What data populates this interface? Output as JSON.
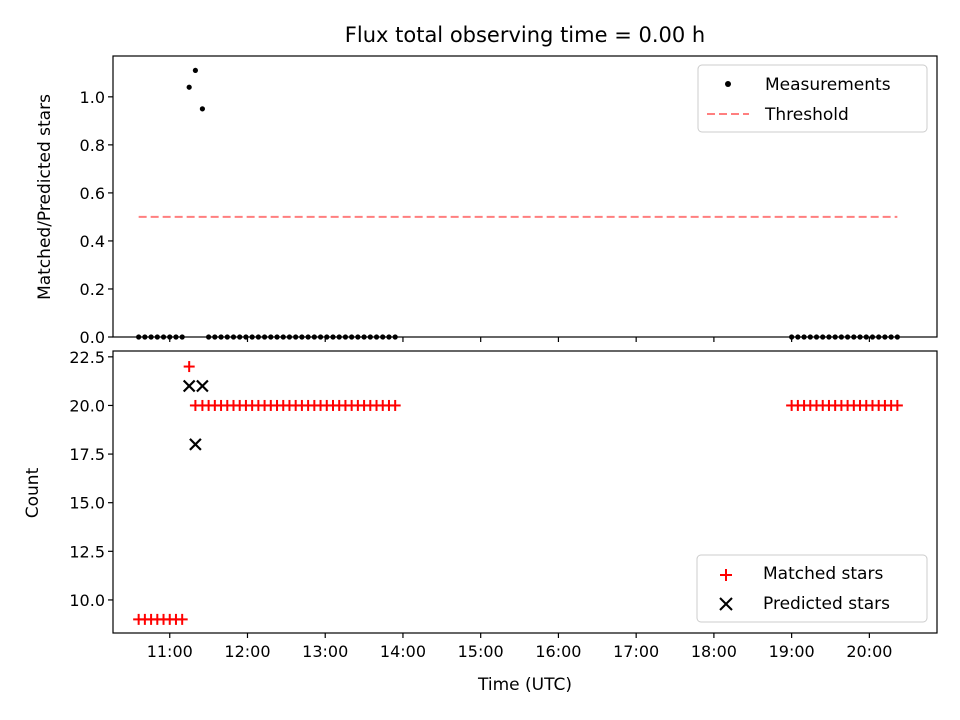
{
  "chart_data": [
    {
      "type": "scatter",
      "title": "Flux total observing time = 0.00 h",
      "xlabel": "",
      "ylabel": "Matched/Predicted stars",
      "xlim": [
        10.27,
        20.87
      ],
      "ylim": [
        0.0,
        1.17
      ],
      "yticks": [
        0.0,
        0.2,
        0.4,
        0.6,
        0.8,
        1.0
      ],
      "ytick_labels": [
        "0.0",
        "0.2",
        "0.4",
        "0.6",
        "0.8",
        "1.0"
      ],
      "legend_position": "upper right",
      "series": [
        {
          "name": "Measurements",
          "style": "dot",
          "color": "#000000",
          "x": [
            10.6,
            10.68,
            10.76,
            10.84,
            10.92,
            11.0,
            11.08,
            11.16,
            11.25,
            11.33,
            11.42,
            11.5,
            11.58,
            11.66,
            11.74,
            11.82,
            11.9,
            11.98,
            12.06,
            12.14,
            12.22,
            12.3,
            12.38,
            12.46,
            12.54,
            12.62,
            12.7,
            12.78,
            12.86,
            12.94,
            13.02,
            13.1,
            13.18,
            13.26,
            13.34,
            13.42,
            13.5,
            13.58,
            13.66,
            13.74,
            13.82,
            13.9,
            19.0,
            19.08,
            19.16,
            19.24,
            19.32,
            19.4,
            19.48,
            19.56,
            19.64,
            19.72,
            19.8,
            19.88,
            19.96,
            20.04,
            20.12,
            20.2,
            20.28,
            20.36
          ],
          "y": [
            0,
            0,
            0,
            0,
            0,
            0,
            0,
            0,
            1.04,
            1.11,
            0.95,
            0,
            0,
            0,
            0,
            0,
            0,
            0,
            0,
            0,
            0,
            0,
            0,
            0,
            0,
            0,
            0,
            0,
            0,
            0,
            0,
            0,
            0,
            0,
            0,
            0,
            0,
            0,
            0,
            0,
            0,
            0,
            0,
            0,
            0,
            0,
            0,
            0,
            0,
            0,
            0,
            0,
            0,
            0,
            0,
            0,
            0,
            0,
            0,
            0
          ]
        },
        {
          "name": "Threshold",
          "style": "dashed-line",
          "color": "#ff7f7f",
          "x": [
            10.6,
            20.36
          ],
          "y": [
            0.5,
            0.5
          ]
        }
      ]
    },
    {
      "type": "scatter",
      "title": "",
      "xlabel": "Time (UTC)",
      "ylabel": "Count",
      "xlim": [
        10.27,
        20.87
      ],
      "ylim": [
        8.3,
        22.8
      ],
      "yticks": [
        10.0,
        12.5,
        15.0,
        17.5,
        20.0,
        22.5
      ],
      "ytick_labels": [
        "10.0",
        "12.5",
        "15.0",
        "17.5",
        "20.0",
        "22.5"
      ],
      "xticks": [
        11,
        12,
        13,
        14,
        15,
        16,
        17,
        18,
        19,
        20
      ],
      "xtick_labels": [
        "11:00",
        "12:00",
        "13:00",
        "14:00",
        "15:00",
        "16:00",
        "17:00",
        "18:00",
        "19:00",
        "20:00"
      ],
      "legend_position": "lower right",
      "series": [
        {
          "name": "Matched stars",
          "style": "plus",
          "color": "#ff0000",
          "x": [
            10.6,
            10.68,
            10.76,
            10.84,
            10.92,
            11.0,
            11.08,
            11.16,
            11.25,
            11.33,
            11.42,
            11.5,
            11.58,
            11.66,
            11.74,
            11.82,
            11.9,
            11.98,
            12.06,
            12.14,
            12.22,
            12.3,
            12.38,
            12.46,
            12.54,
            12.62,
            12.7,
            12.78,
            12.86,
            12.94,
            13.02,
            13.1,
            13.18,
            13.26,
            13.34,
            13.42,
            13.5,
            13.58,
            13.66,
            13.74,
            13.82,
            13.9,
            19.0,
            19.08,
            19.16,
            19.24,
            19.32,
            19.4,
            19.48,
            19.56,
            19.64,
            19.72,
            19.8,
            19.88,
            19.96,
            20.04,
            20.12,
            20.2,
            20.28,
            20.36
          ],
          "y": [
            9,
            9,
            9,
            9,
            9,
            9,
            9,
            9,
            22,
            20,
            20,
            20,
            20,
            20,
            20,
            20,
            20,
            20,
            20,
            20,
            20,
            20,
            20,
            20,
            20,
            20,
            20,
            20,
            20,
            20,
            20,
            20,
            20,
            20,
            20,
            20,
            20,
            20,
            20,
            20,
            20,
            20,
            20,
            20,
            20,
            20,
            20,
            20,
            20,
            20,
            20,
            20,
            20,
            20,
            20,
            20,
            20,
            20,
            20,
            20
          ]
        },
        {
          "name": "Predicted stars",
          "style": "x",
          "color": "#000000",
          "x": [
            11.25,
            11.33,
            11.42
          ],
          "y": [
            21,
            18,
            21
          ]
        }
      ]
    }
  ]
}
